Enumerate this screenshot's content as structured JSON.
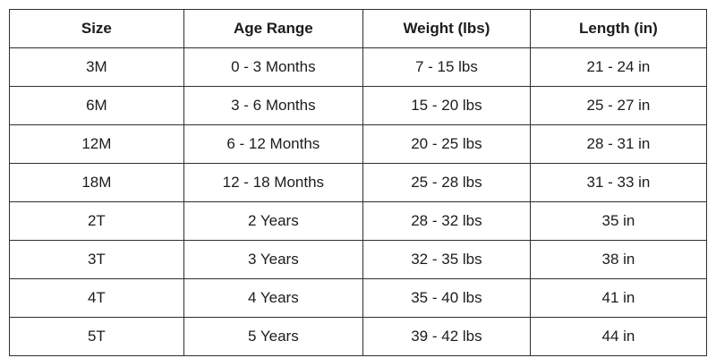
{
  "page": {
    "background_color": "#ffffff",
    "border_color": "#2e2e2e",
    "text_color": "#1c1c1c"
  },
  "chart_data": {
    "type": "table",
    "title": "",
    "columns": [
      "Size",
      "Age Range",
      "Weight (lbs)",
      "Length (in)"
    ],
    "rows": [
      [
        "3M",
        "0 - 3 Months",
        "7 - 15 lbs",
        "21 - 24 in"
      ],
      [
        "6M",
        "3 - 6 Months",
        "15 - 20 lbs",
        "25 - 27 in"
      ],
      [
        "12M",
        "6 - 12 Months",
        "20 - 25 lbs",
        "28 - 31 in"
      ],
      [
        "18M",
        "12 - 18 Months",
        "25 - 28 lbs",
        "31 - 33 in"
      ],
      [
        "2T",
        "2 Years",
        "28 - 32 lbs",
        "35 in"
      ],
      [
        "3T",
        "3 Years",
        "32 - 35 lbs",
        "38 in"
      ],
      [
        "4T",
        "4 Years",
        "35 - 40 lbs",
        "41 in"
      ],
      [
        "5T",
        "5 Years",
        "39 - 42 lbs",
        "44 in"
      ]
    ]
  }
}
